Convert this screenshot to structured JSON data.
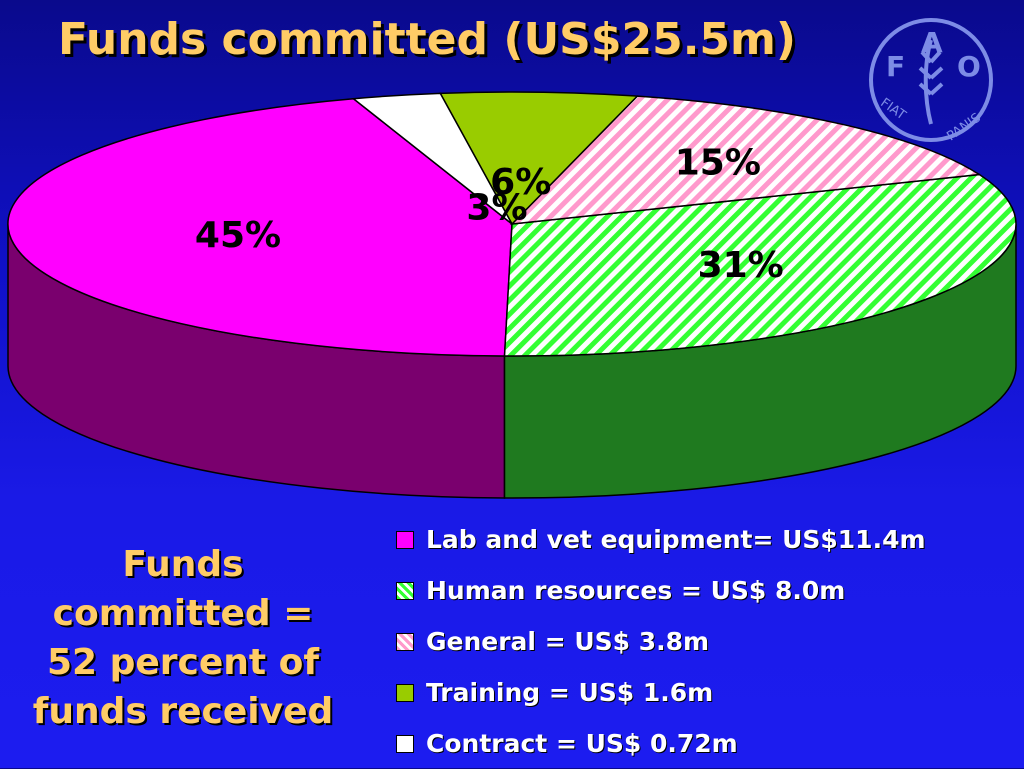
{
  "title": "Funds committed (US$25.5m)",
  "summary_lines": [
    "Funds",
    "committed =",
    "52 percent of",
    "funds received"
  ],
  "logo": {
    "icon": "fao-logo-icon",
    "letters": [
      "F",
      "A",
      "O"
    ],
    "motto_left": "FIAT",
    "motto_right": "PANIS"
  },
  "colors": {
    "title": "#ffcc66",
    "lab": "#ff00ff",
    "human": "#33ff33",
    "general": "#ff99cc",
    "training": "#99cc00",
    "contract": "#ffffff"
  },
  "chart_data": {
    "type": "pie",
    "title": "Funds committed (US$25.5m)",
    "style": "3d",
    "slices": [
      {
        "name": "Lab and vet equipment",
        "value": 11.4,
        "percent_label": "45%"
      },
      {
        "name": "Human resources",
        "value": 8.0,
        "percent_label": "31%"
      },
      {
        "name": "General",
        "value": 3.8,
        "percent_label": "15%"
      },
      {
        "name": "Training",
        "value": 1.6,
        "percent_label": "6%"
      },
      {
        "name": "Contract",
        "value": 0.72,
        "percent_label": "3%"
      }
    ],
    "legend": [
      "Lab and vet equipment= US$11.4m",
      "Human resources = US$ 8.0m",
      "General = US$ 3.8m",
      "Training = US$ 1.6m",
      "Contract = US$ 0.72m"
    ],
    "legend_placement": "bottom-right"
  }
}
